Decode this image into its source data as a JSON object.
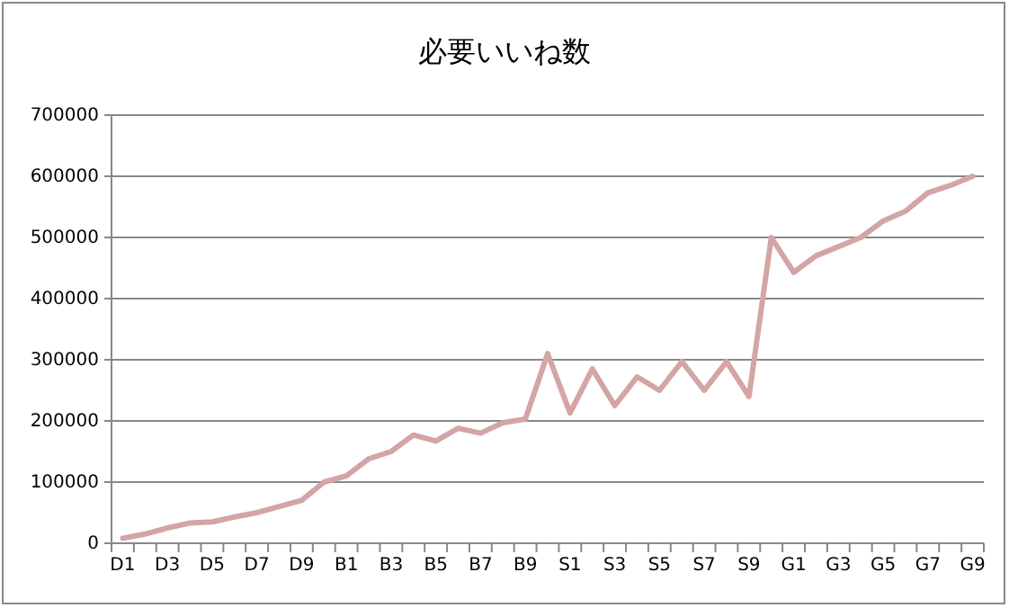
{
  "chart_data": {
    "type": "line",
    "title": "必要いいね数",
    "categories": [
      "D1",
      null,
      "D3",
      null,
      "D5",
      null,
      "D7",
      null,
      "D9",
      null,
      "B1",
      null,
      "B3",
      null,
      "B5",
      null,
      "B7",
      null,
      "B9",
      null,
      "S1",
      null,
      "S3",
      null,
      "S5",
      null,
      "S7",
      null,
      "S9",
      null,
      "G1",
      null,
      "G3",
      null,
      "G5",
      null,
      "G7",
      null,
      "G9"
    ],
    "series": [
      {
        "color": "#d4a5a5",
        "values": [
          8000,
          15000,
          25000,
          33000,
          35000,
          43000,
          50000,
          60000,
          70000,
          100000,
          110000,
          138000,
          150000,
          177000,
          167000,
          188000,
          180000,
          197000,
          203000,
          310000,
          213000,
          285000,
          225000,
          272000,
          250000,
          297000,
          250000,
          297000,
          240000,
          500000,
          443000,
          470000,
          485000,
          500000,
          527000,
          543000,
          573000,
          585000,
          600000
        ]
      }
    ],
    "ylim": [
      0,
      700000
    ],
    "yticks": [
      0,
      100000,
      200000,
      300000,
      400000,
      500000,
      600000,
      700000
    ],
    "grid": "y",
    "marker": "none",
    "line_style": "solid"
  }
}
